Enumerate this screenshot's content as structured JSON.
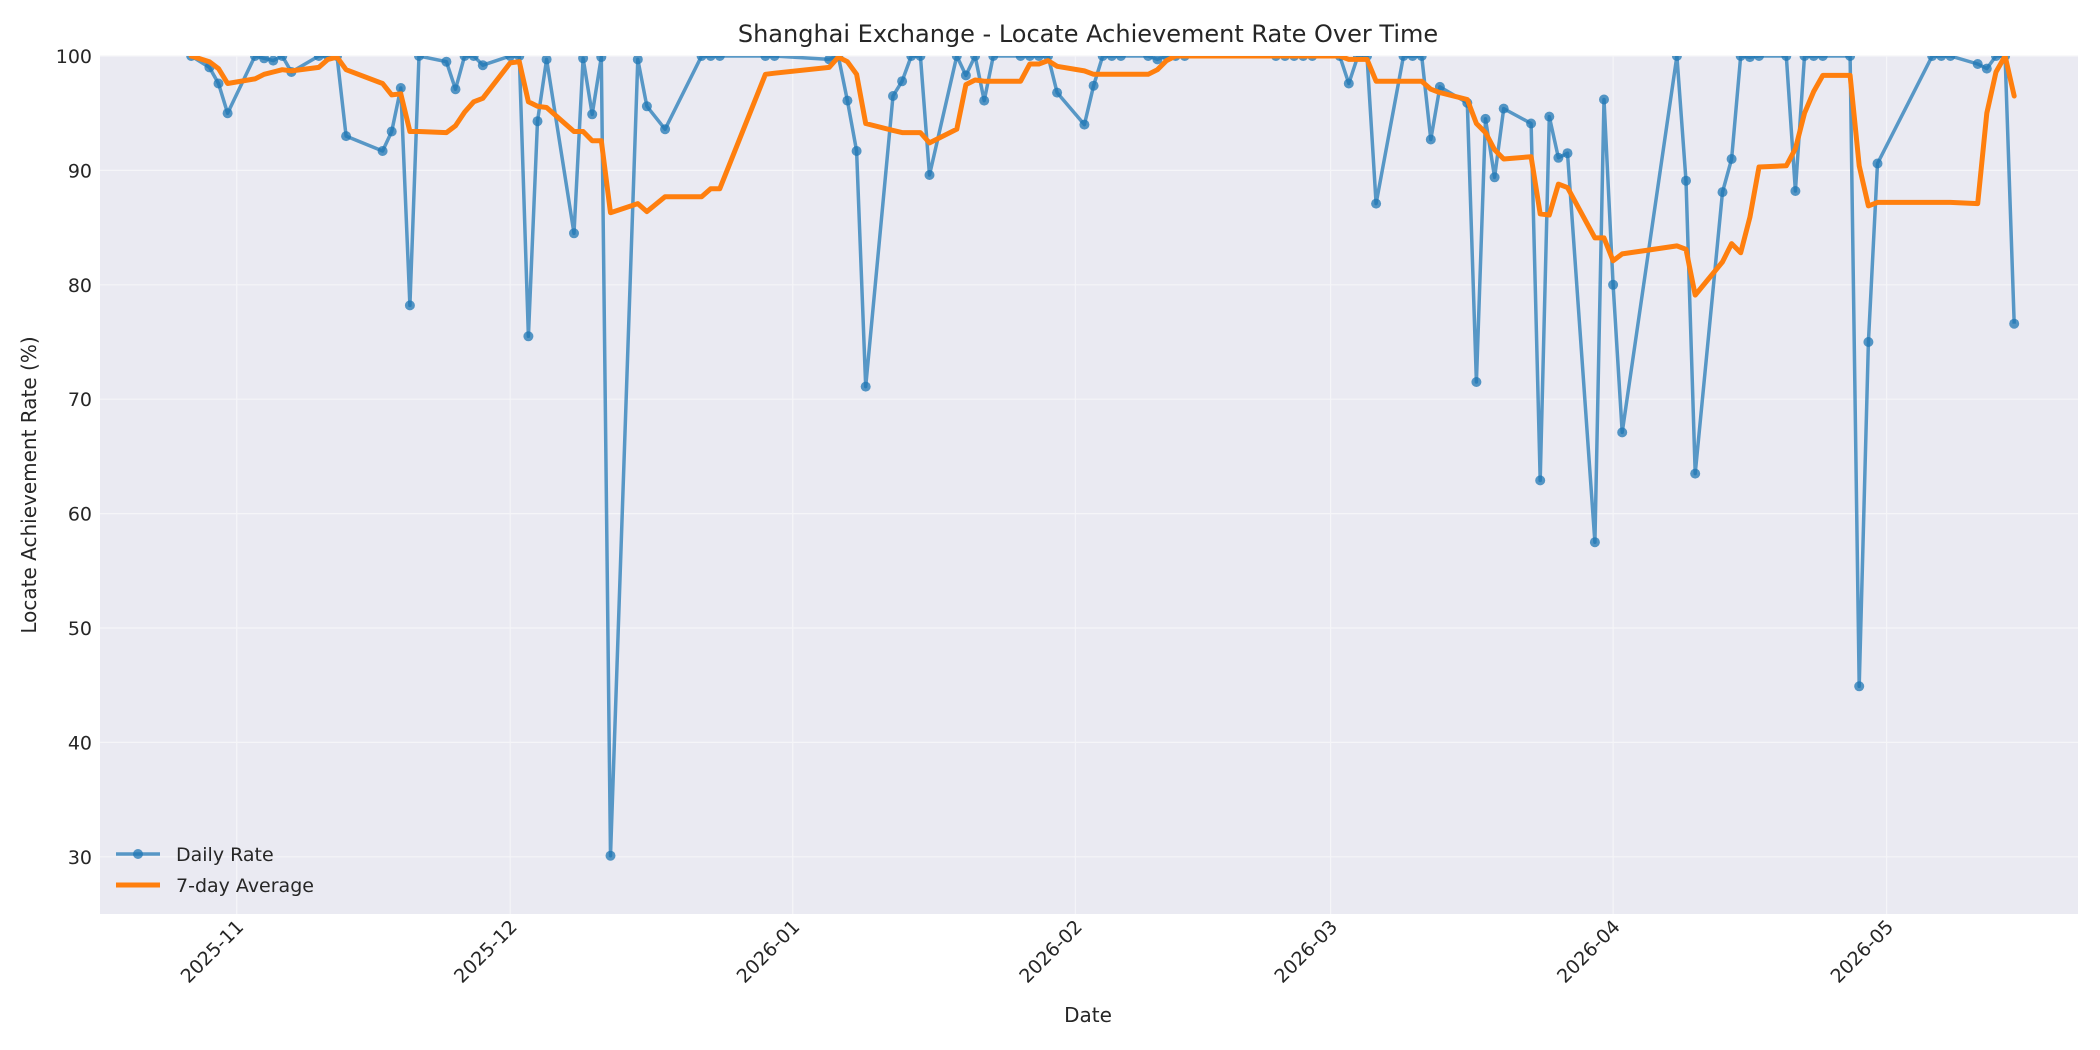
{
  "chart_data": {
    "type": "line",
    "title": "Shanghai Exchange - Locate Achievement Rate Over Time",
    "xlabel": "Date",
    "ylabel": "Locate Achievement Rate (%)",
    "x_range": [
      "2025-10-17",
      "2026-05-22"
    ],
    "ylim": [
      25,
      100
    ],
    "grid": true,
    "legend_position": "lower-left",
    "x_ticks": [
      "2025-11",
      "2025-12",
      "2026-01",
      "2026-02",
      "2026-03",
      "2026-04",
      "2026-05"
    ],
    "x_tick_dates": [
      "2025-11-01",
      "2025-12-01",
      "2026-01-01",
      "2026-02-01",
      "2026-03-01",
      "2026-04-01",
      "2026-05-01"
    ],
    "y_ticks": [
      30,
      40,
      50,
      60,
      70,
      80,
      90,
      100
    ],
    "colors": {
      "daily": "#1f77b4",
      "average": "#ff7f0e",
      "plot_bg": "#eaeaf2",
      "grid": "#f5f5f8"
    },
    "series": [
      {
        "name": "Daily Rate",
        "marker": "circle",
        "points": [
          [
            "2025-10-27",
            100
          ],
          [
            "2025-10-29",
            99
          ],
          [
            "2025-10-30",
            97.6
          ],
          [
            "2025-10-31",
            95
          ],
          [
            "2025-11-03",
            100
          ],
          [
            "2025-11-04",
            99.8
          ],
          [
            "2025-11-05",
            99.6
          ],
          [
            "2025-11-06",
            100
          ],
          [
            "2025-11-07",
            98.6
          ],
          [
            "2025-11-10",
            100
          ],
          [
            "2025-11-11",
            100
          ],
          [
            "2025-11-12",
            100
          ],
          [
            "2025-11-13",
            93
          ],
          [
            "2025-11-17",
            91.7
          ],
          [
            "2025-11-18",
            93.4
          ],
          [
            "2025-11-19",
            97.2
          ],
          [
            "2025-11-20",
            78.2
          ],
          [
            "2025-11-21",
            100
          ],
          [
            "2025-11-24",
            99.5
          ],
          [
            "2025-11-25",
            97.1
          ],
          [
            "2025-11-26",
            100
          ],
          [
            "2025-11-27",
            100
          ],
          [
            "2025-11-28",
            99.2
          ],
          [
            "2025-12-01",
            100
          ],
          [
            "2025-12-02",
            100
          ],
          [
            "2025-12-03",
            75.5
          ],
          [
            "2025-12-04",
            94.3
          ],
          [
            "2025-12-05",
            99.7
          ],
          [
            "2025-12-08",
            84.5
          ],
          [
            "2025-12-09",
            99.8
          ],
          [
            "2025-12-10",
            94.9
          ],
          [
            "2025-12-11",
            99.9
          ],
          [
            "2025-12-12",
            30.1
          ],
          [
            "2025-12-15",
            99.7
          ],
          [
            "2025-12-16",
            95.6
          ],
          [
            "2025-12-18",
            93.6
          ],
          [
            "2025-12-22",
            100
          ],
          [
            "2025-12-23",
            100
          ],
          [
            "2025-12-24",
            100
          ],
          [
            "2025-12-29",
            100
          ],
          [
            "2025-12-30",
            100
          ],
          [
            "2026-01-05",
            99.7
          ],
          [
            "2026-01-06",
            100
          ],
          [
            "2026-01-07",
            96.1
          ],
          [
            "2026-01-08",
            91.7
          ],
          [
            "2026-01-09",
            71.1
          ],
          [
            "2026-01-12",
            96.5
          ],
          [
            "2026-01-13",
            97.8
          ],
          [
            "2026-01-14",
            100
          ],
          [
            "2026-01-15",
            100
          ],
          [
            "2026-01-16",
            89.6
          ],
          [
            "2026-01-19",
            100
          ],
          [
            "2026-01-20",
            98.3
          ],
          [
            "2026-01-21",
            100
          ],
          [
            "2026-01-22",
            96.1
          ],
          [
            "2026-01-23",
            100
          ],
          [
            "2026-01-26",
            100
          ],
          [
            "2026-01-27",
            100
          ],
          [
            "2026-01-28",
            100
          ],
          [
            "2026-01-29",
            100
          ],
          [
            "2026-01-30",
            96.8
          ],
          [
            "2026-02-02",
            94
          ],
          [
            "2026-02-03",
            97.4
          ],
          [
            "2026-02-04",
            100
          ],
          [
            "2026-02-05",
            100
          ],
          [
            "2026-02-06",
            100
          ],
          [
            "2026-02-09",
            100
          ],
          [
            "2026-02-10",
            99.7
          ],
          [
            "2026-02-11",
            100
          ],
          [
            "2026-02-12",
            100
          ],
          [
            "2026-02-13",
            100
          ],
          [
            "2026-02-23",
            100
          ],
          [
            "2026-02-24",
            100
          ],
          [
            "2026-02-25",
            100
          ],
          [
            "2026-02-26",
            100
          ],
          [
            "2026-02-27",
            100
          ],
          [
            "2026-03-02",
            100
          ],
          [
            "2026-03-03",
            97.6
          ],
          [
            "2026-03-04",
            100
          ],
          [
            "2026-03-05",
            100
          ],
          [
            "2026-03-06",
            87.1
          ],
          [
            "2026-03-09",
            100
          ],
          [
            "2026-03-10",
            100
          ],
          [
            "2026-03-11",
            100
          ],
          [
            "2026-03-12",
            92.7
          ],
          [
            "2026-03-13",
            97.3
          ],
          [
            "2026-03-16",
            95.9
          ],
          [
            "2026-03-17",
            71.5
          ],
          [
            "2026-03-18",
            94.5
          ],
          [
            "2026-03-19",
            89.4
          ],
          [
            "2026-03-20",
            95.4
          ],
          [
            "2026-03-23",
            94.1
          ],
          [
            "2026-03-24",
            62.9
          ],
          [
            "2026-03-25",
            94.7
          ],
          [
            "2026-03-26",
            91.1
          ],
          [
            "2026-03-27",
            91.5
          ],
          [
            "2026-03-30",
            57.5
          ],
          [
            "2026-03-31",
            96.2
          ],
          [
            "2026-04-01",
            80
          ],
          [
            "2026-04-02",
            67.1
          ],
          [
            "2026-04-08",
            100
          ],
          [
            "2026-04-09",
            89.1
          ],
          [
            "2026-04-10",
            63.5
          ],
          [
            "2026-04-13",
            88.1
          ],
          [
            "2026-04-14",
            91
          ],
          [
            "2026-04-15",
            100
          ],
          [
            "2026-04-16",
            99.9
          ],
          [
            "2026-04-17",
            100
          ],
          [
            "2026-04-20",
            100
          ],
          [
            "2026-04-21",
            88.2
          ],
          [
            "2026-04-22",
            100
          ],
          [
            "2026-04-23",
            100
          ],
          [
            "2026-04-24",
            100
          ],
          [
            "2026-04-27",
            100
          ],
          [
            "2026-04-28",
            44.9
          ],
          [
            "2026-04-29",
            75
          ],
          [
            "2026-04-30",
            90.6
          ],
          [
            "2026-05-06",
            100
          ],
          [
            "2026-05-07",
            100
          ],
          [
            "2026-05-08",
            100
          ],
          [
            "2026-05-11",
            99.3
          ],
          [
            "2026-05-12",
            98.9
          ],
          [
            "2026-05-13",
            100
          ],
          [
            "2026-05-14",
            100
          ],
          [
            "2026-05-15",
            76.6
          ]
        ]
      },
      {
        "name": "7-day Average",
        "points": [
          [
            "2025-10-27",
            100
          ],
          [
            "2025-10-29",
            99.5
          ],
          [
            "2025-10-30",
            98.9
          ],
          [
            "2025-10-31",
            97.6
          ],
          [
            "2025-11-03",
            98
          ],
          [
            "2025-11-04",
            98.4
          ],
          [
            "2025-11-05",
            98.6
          ],
          [
            "2025-11-06",
            98.8
          ],
          [
            "2025-11-07",
            98.7
          ],
          [
            "2025-11-10",
            99
          ],
          [
            "2025-11-11",
            99.7
          ],
          [
            "2025-11-12",
            99.9
          ],
          [
            "2025-11-13",
            98.8
          ],
          [
            "2025-11-17",
            97.6
          ],
          [
            "2025-11-18",
            96.6
          ],
          [
            "2025-11-19",
            96.7
          ],
          [
            "2025-11-20",
            93.4
          ],
          [
            "2025-11-21",
            93.4
          ],
          [
            "2025-11-24",
            93.3
          ],
          [
            "2025-11-25",
            93.9
          ],
          [
            "2025-11-26",
            95.1
          ],
          [
            "2025-11-27",
            96
          ],
          [
            "2025-11-28",
            96.3
          ],
          [
            "2025-12-01",
            99.4
          ],
          [
            "2025-12-02",
            99.5
          ],
          [
            "2025-12-03",
            96
          ],
          [
            "2025-12-04",
            95.6
          ],
          [
            "2025-12-05",
            95.5
          ],
          [
            "2025-12-08",
            93.4
          ],
          [
            "2025-12-09",
            93.4
          ],
          [
            "2025-12-10",
            92.6
          ],
          [
            "2025-12-11",
            92.6
          ],
          [
            "2025-12-12",
            86.3
          ],
          [
            "2025-12-15",
            87.1
          ],
          [
            "2025-12-16",
            86.4
          ],
          [
            "2025-12-18",
            87.7
          ],
          [
            "2025-12-22",
            87.7
          ],
          [
            "2025-12-23",
            88.4
          ],
          [
            "2025-12-24",
            88.4
          ],
          [
            "2025-12-29",
            98.4
          ],
          [
            "2025-12-30",
            98.5
          ],
          [
            "2026-01-05",
            99
          ],
          [
            "2026-01-06",
            99.9
          ],
          [
            "2026-01-07",
            99.5
          ],
          [
            "2026-01-08",
            98.4
          ],
          [
            "2026-01-09",
            94.1
          ],
          [
            "2026-01-12",
            93.5
          ],
          [
            "2026-01-13",
            93.3
          ],
          [
            "2026-01-14",
            93.3
          ],
          [
            "2026-01-15",
            93.3
          ],
          [
            "2026-01-16",
            92.4
          ],
          [
            "2026-01-19",
            93.6
          ],
          [
            "2026-01-20",
            97.5
          ],
          [
            "2026-01-21",
            97.9
          ],
          [
            "2026-01-22",
            97.8
          ],
          [
            "2026-01-23",
            97.8
          ],
          [
            "2026-01-26",
            97.8
          ],
          [
            "2026-01-27",
            99.3
          ],
          [
            "2026-01-28",
            99.3
          ],
          [
            "2026-01-29",
            99.6
          ],
          [
            "2026-01-30",
            99.1
          ],
          [
            "2026-02-02",
            98.7
          ],
          [
            "2026-02-03",
            98.4
          ],
          [
            "2026-02-04",
            98.4
          ],
          [
            "2026-02-05",
            98.4
          ],
          [
            "2026-02-06",
            98.4
          ],
          [
            "2026-02-09",
            98.4
          ],
          [
            "2026-02-10",
            98.8
          ],
          [
            "2026-02-11",
            99.6
          ],
          [
            "2026-02-12",
            100
          ],
          [
            "2026-02-13",
            100
          ],
          [
            "2026-02-23",
            100
          ],
          [
            "2026-02-24",
            100
          ],
          [
            "2026-02-25",
            100
          ],
          [
            "2026-02-26",
            100
          ],
          [
            "2026-02-27",
            100
          ],
          [
            "2026-03-02",
            100
          ],
          [
            "2026-03-03",
            99.7
          ],
          [
            "2026-03-04",
            99.7
          ],
          [
            "2026-03-05",
            99.7
          ],
          [
            "2026-03-06",
            97.8
          ],
          [
            "2026-03-09",
            97.8
          ],
          [
            "2026-03-10",
            97.8
          ],
          [
            "2026-03-11",
            97.8
          ],
          [
            "2026-03-12",
            97.1
          ],
          [
            "2026-03-13",
            96.8
          ],
          [
            "2026-03-16",
            96.2
          ],
          [
            "2026-03-17",
            94.1
          ],
          [
            "2026-03-18",
            93.3
          ],
          [
            "2026-03-19",
            91.8
          ],
          [
            "2026-03-20",
            91
          ],
          [
            "2026-03-23",
            91.2
          ],
          [
            "2026-03-24",
            86.2
          ],
          [
            "2026-03-25",
            86.1
          ],
          [
            "2026-03-26",
            88.8
          ],
          [
            "2026-03-27",
            88.5
          ],
          [
            "2026-03-30",
            84.1
          ],
          [
            "2026-03-31",
            84.1
          ],
          [
            "2026-04-01",
            82.1
          ],
          [
            "2026-04-02",
            82.7
          ],
          [
            "2026-04-08",
            83.4
          ],
          [
            "2026-04-09",
            83.1
          ],
          [
            "2026-04-10",
            79.1
          ],
          [
            "2026-04-13",
            82
          ],
          [
            "2026-04-14",
            83.6
          ],
          [
            "2026-04-15",
            82.8
          ],
          [
            "2026-04-16",
            85.9
          ],
          [
            "2026-04-17",
            90.3
          ],
          [
            "2026-04-20",
            90.4
          ],
          [
            "2026-04-21",
            91.9
          ],
          [
            "2026-04-22",
            95
          ],
          [
            "2026-04-23",
            96.9
          ],
          [
            "2026-04-24",
            98.3
          ],
          [
            "2026-04-27",
            98.3
          ],
          [
            "2026-04-28",
            90.4
          ],
          [
            "2026-04-29",
            86.9
          ],
          [
            "2026-04-30",
            87.2
          ],
          [
            "2026-05-06",
            87.2
          ],
          [
            "2026-05-07",
            87.2
          ],
          [
            "2026-05-08",
            87.2
          ],
          [
            "2026-05-11",
            87.1
          ],
          [
            "2026-05-12",
            95
          ],
          [
            "2026-05-13",
            98.6
          ],
          [
            "2026-05-14",
            100
          ],
          [
            "2026-05-15",
            96.5
          ]
        ]
      }
    ]
  }
}
